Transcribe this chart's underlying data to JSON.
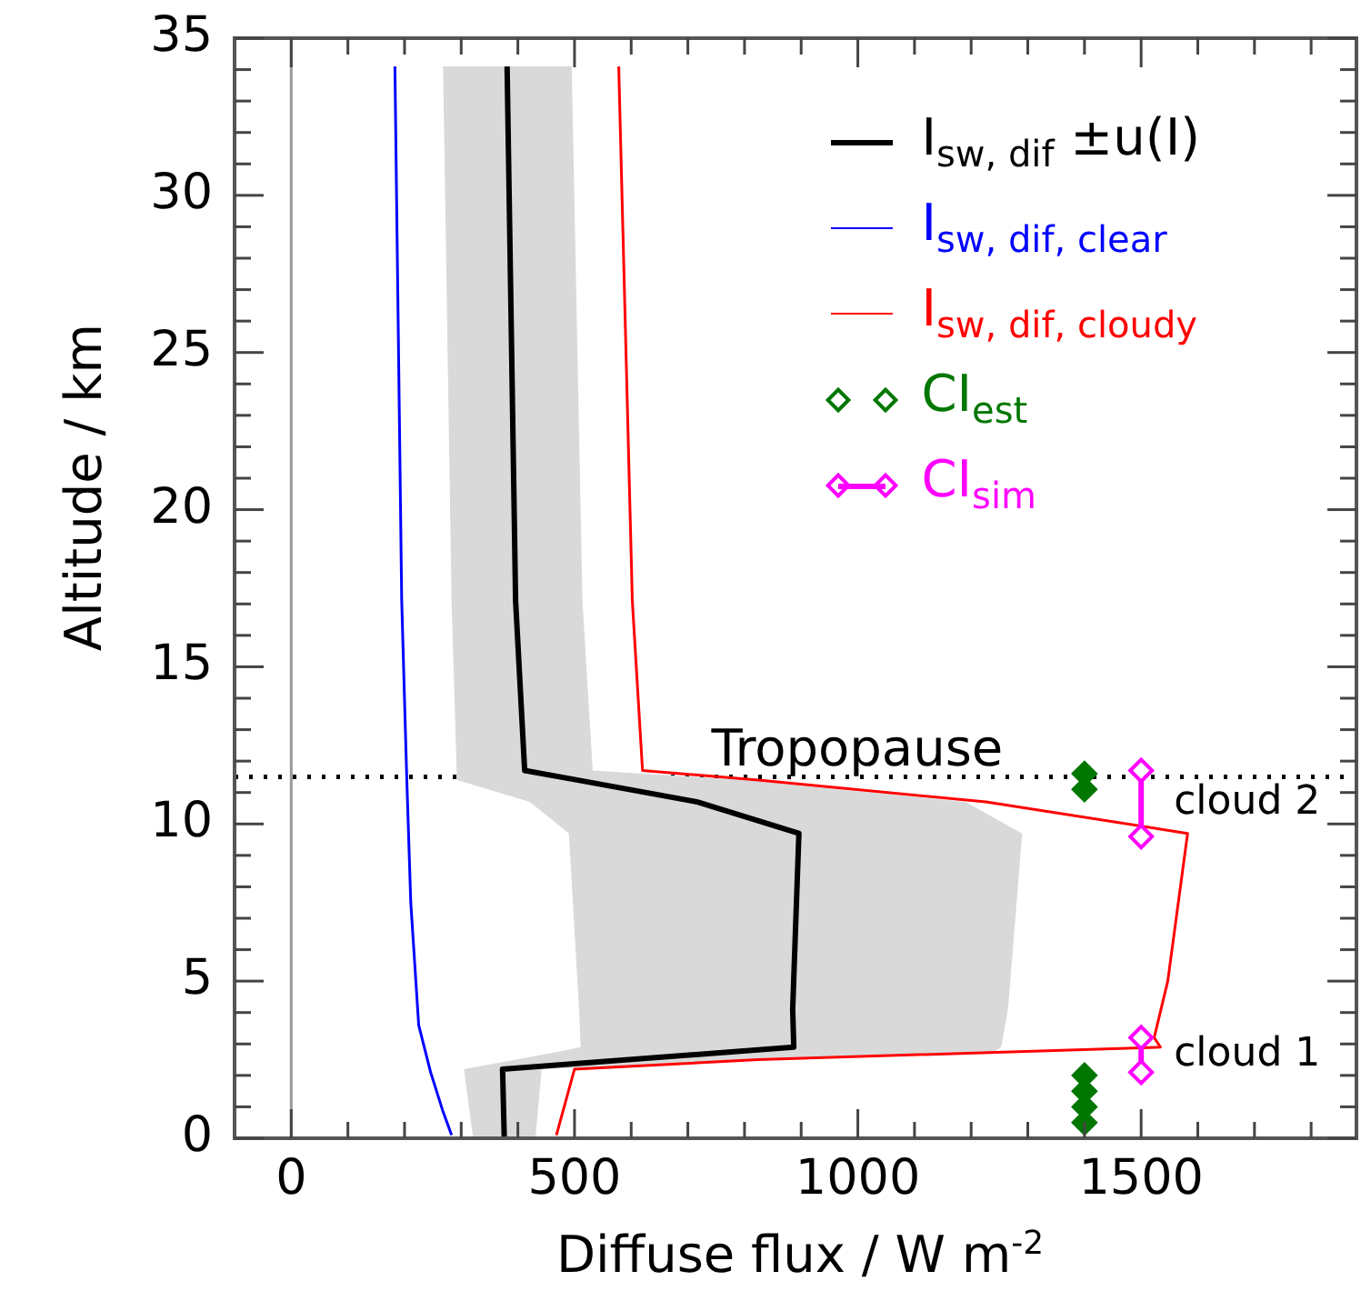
{
  "chart_data": {
    "type": "line",
    "xlabel": "Diffuse flux / W m$^{-2}$",
    "ylabel": "Altitude / km",
    "xlim": [
      -100,
      1880
    ],
    "ylim": [
      0,
      35
    ],
    "xticks": [
      0,
      {
        "value": 100,
        "label": null
      },
      {
        "value": 200,
        "label": null
      },
      {
        "value": 300,
        "label": null
      },
      {
        "value": 400,
        "label": null
      },
      500,
      {
        "value": 600,
        "label": null
      },
      {
        "value": 700,
        "label": null
      },
      {
        "value": 800,
        "label": null
      },
      {
        "value": 900,
        "label": null
      },
      1000,
      {
        "value": 1100,
        "label": null
      },
      {
        "value": 1200,
        "label": null
      },
      {
        "value": 1300,
        "label": null
      },
      {
        "value": 1400,
        "label": null
      },
      1500,
      {
        "value": 1600,
        "label": null
      },
      {
        "value": 1700,
        "label": null
      },
      {
        "value": 1800,
        "label": null
      }
    ],
    "yticks": [
      0,
      {
        "value": 1,
        "label": null
      },
      {
        "value": 2,
        "label": null
      },
      {
        "value": 3,
        "label": null
      },
      {
        "value": 4,
        "label": null
      },
      5,
      {
        "value": 6,
        "label": null
      },
      {
        "value": 7,
        "label": null
      },
      {
        "value": 8,
        "label": null
      },
      {
        "value": 9,
        "label": null
      },
      10,
      {
        "value": 11,
        "label": null
      },
      {
        "value": 12,
        "label": null
      },
      {
        "value": 13,
        "label": null
      },
      {
        "value": 14,
        "label": null
      },
      15,
      {
        "value": 16,
        "label": null
      },
      {
        "value": 17,
        "label": null
      },
      {
        "value": 18,
        "label": null
      },
      {
        "value": 19,
        "label": null
      },
      20,
      {
        "value": 21,
        "label": null
      },
      {
        "value": 22,
        "label": null
      },
      {
        "value": 23,
        "label": null
      },
      {
        "value": 24,
        "label": null
      },
      25,
      {
        "value": 26,
        "label": null
      },
      {
        "value": 27,
        "label": null
      },
      {
        "value": 28,
        "label": null
      },
      {
        "value": 29,
        "label": null
      },
      30,
      {
        "value": 31,
        "label": null
      },
      {
        "value": 32,
        "label": null
      },
      {
        "value": 33,
        "label": null
      },
      {
        "value": 34,
        "label": null
      },
      35
    ],
    "grid": false,
    "legend": "top right",
    "series": [
      {
        "type": "area",
        "color": "#d9d9d9",
        "x": [
          268,
          283,
          292,
          292,
          421,
          490,
          508,
          511,
          470,
          305,
          321,
          431,
          442,
          1240,
          1253,
          1265,
          1290,
          1190,
          800,
          532,
          514,
          495
        ],
        "values": [
          34.1,
          17.1,
          11.7,
          11.4,
          10.7,
          9.7,
          4.1,
          2.9,
          2.75,
          2.2,
          0,
          0,
          2.2,
          2.75,
          2.9,
          4.1,
          9.7,
          10.7,
          11.4,
          11.7,
          17.1,
          34.1
        ]
      },
      {
        "name": "I$_{sw, dif}$ ±u(I)",
        "color": "#000000",
        "marker": "none",
        "x": [
          381,
          396,
          412,
          504,
          717,
          896,
          885,
          887,
          777,
          373,
          376
        ],
        "values": [
          34.1,
          17.1,
          11.7,
          11.4,
          10.7,
          9.7,
          4.1,
          2.9,
          2.75,
          2.2,
          0
        ]
      },
      {
        "name": "I$_{sw, dif, clear}$",
        "color": "#0000ff",
        "marker": "none",
        "x": [
          183,
          195,
          204,
          211,
          225,
          246,
          267,
          283
        ],
        "values": [
          34.1,
          17.1,
          11.4,
          7.5,
          3.6,
          2.1,
          0.9,
          0.1
        ]
      },
      {
        "name": "I$_{sw, dif, cloudy}$",
        "color": "#ff0000",
        "marker": "none",
        "x": [
          578,
          602,
          620,
          824,
          1226,
          1582,
          1547,
          1523,
          1534,
          824,
          500,
          468
        ],
        "values": [
          34.1,
          17.1,
          11.7,
          11.4,
          10.7,
          9.7,
          5,
          3.2,
          2.9,
          2.5,
          2.2,
          0.1
        ]
      },
      {
        "name": "CI$_{est}$",
        "type": "scatter",
        "color": "#007700",
        "marker": "diamond",
        "x": [
          1400,
          1400,
          1400,
          1400,
          1400,
          1400
        ],
        "values": [
          0.5,
          1.0,
          1.5,
          2.0,
          11.1,
          11.6
        ]
      },
      {
        "name": "CI$_{sim}$",
        "color": "#ff00ff",
        "marker": "diamond",
        "x": [
          1500,
          1500,
          null,
          1500,
          1500
        ],
        "values": [
          11.7,
          9.6,
          null,
          3.2,
          2.1
        ]
      }
    ],
    "ref_lines": [
      {
        "axis": "x",
        "value": 0,
        "color": "#999999",
        "line_style": "solid"
      },
      {
        "axis": "y",
        "value": 11.5,
        "label": "Tropopause",
        "color": "#000000",
        "line_style": "dotted"
      }
    ],
    "annotations": [
      "cloud 2",
      "cloud 1"
    ]
  }
}
